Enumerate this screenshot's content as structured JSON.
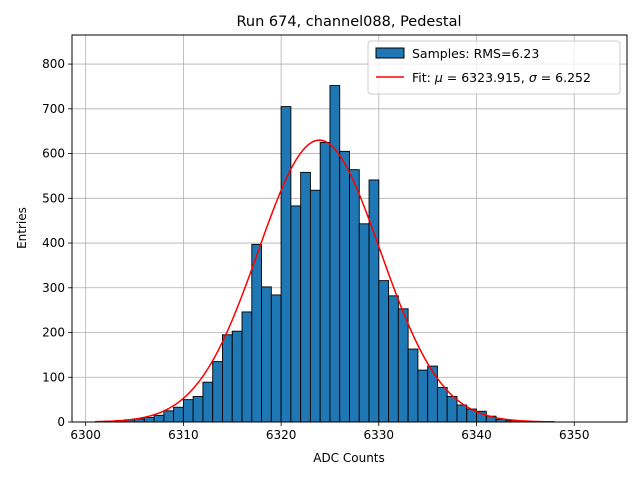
{
  "chart_data": {
    "type": "bar",
    "title": "Run 674, channel088, Pedestal",
    "xlabel": "ADC Counts",
    "ylabel": "Entries",
    "xlim": [
      6298.6,
      6355.4
    ],
    "ylim": [
      0,
      865
    ],
    "xticks": [
      6300,
      6310,
      6320,
      6330,
      6340,
      6350
    ],
    "yticks": [
      0,
      100,
      200,
      300,
      400,
      500,
      600,
      700,
      800
    ],
    "grid": true,
    "legend_position": "top-right",
    "bin_width": 1,
    "histogram": {
      "name": "Samples: RMS=6.23",
      "color": "#1f77b4",
      "edge_color": "#000000",
      "bin_starts": [
        6301,
        6302,
        6303,
        6304,
        6305,
        6306,
        6307,
        6308,
        6309,
        6310,
        6311,
        6312,
        6313,
        6314,
        6315,
        6316,
        6317,
        6318,
        6319,
        6320,
        6321,
        6322,
        6323,
        6324,
        6325,
        6326,
        6327,
        6328,
        6329,
        6330,
        6331,
        6332,
        6333,
        6334,
        6335,
        6336,
        6337,
        6338,
        6339,
        6340,
        6341,
        6342,
        6343,
        6344,
        6345
      ],
      "counts": [
        1,
        2,
        3,
        5,
        7,
        10,
        15,
        25,
        33,
        50,
        57,
        89,
        135,
        195,
        203,
        246,
        397,
        302,
        284,
        705,
        483,
        558,
        518,
        625,
        752,
        605,
        564,
        443,
        541,
        316,
        282,
        253,
        163,
        116,
        125,
        77,
        57,
        38,
        29,
        24,
        13,
        6,
        3,
        2,
        1
      ]
    },
    "fit": {
      "name_prefix": "Fit: ",
      "name_mu_symbol": "μ",
      "name_mu_text": " = 6323.915, ",
      "name_sigma_symbol": "σ",
      "name_sigma_text": " = 6.252",
      "color": "#ff0000",
      "type": "gaussian",
      "mu": 6323.915,
      "sigma": 6.252,
      "amplitude": 630,
      "x_range": [
        6301,
        6348
      ]
    }
  }
}
